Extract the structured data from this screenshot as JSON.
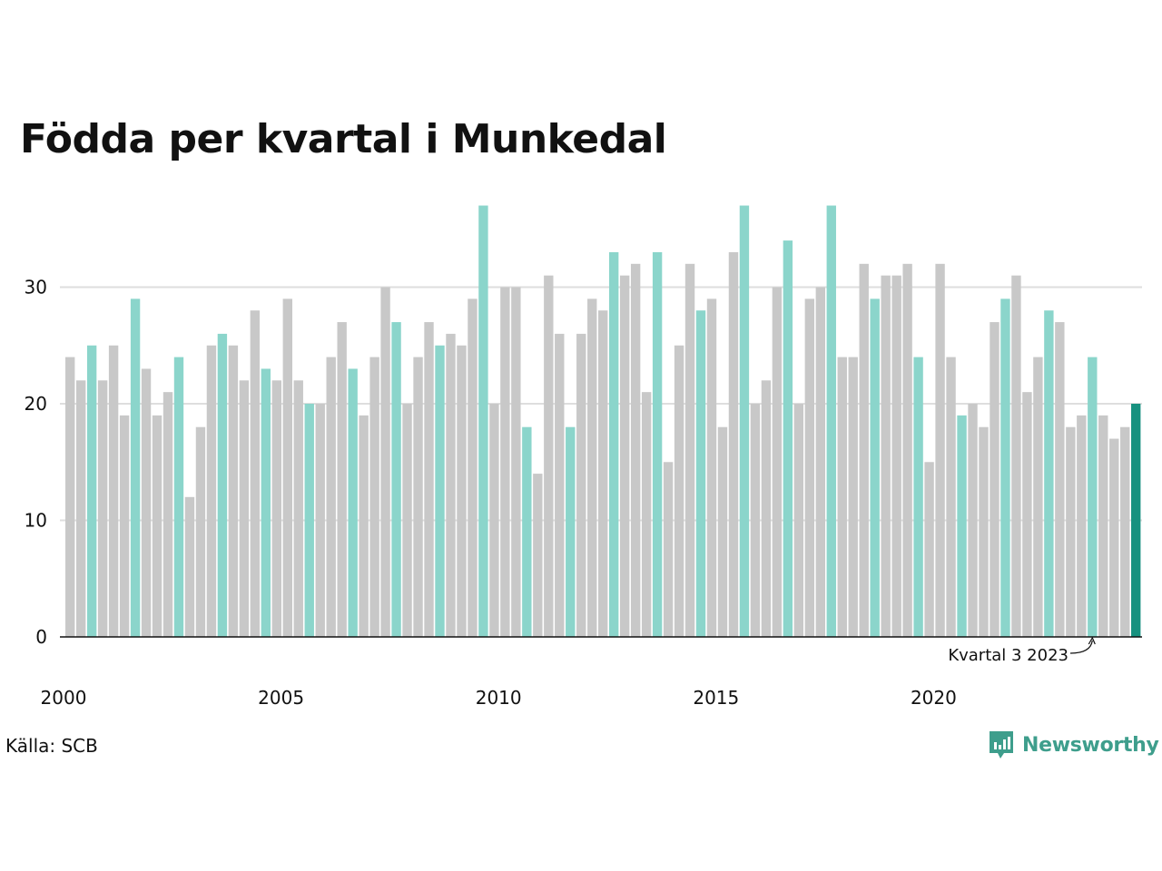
{
  "title": "Födda per kvartal i Munkedal",
  "source": "Källa: SCB",
  "brand": "Newsworthy",
  "colors": {
    "default_bar": "#c8c8c8",
    "highlight_bar": "#8bd5cb",
    "latest_bar": "#17917f",
    "grid": "#dedede",
    "axis": "#111111",
    "brand": "#3e9e8c"
  },
  "chart_data": {
    "type": "bar",
    "title": "Födda per kvartal i Munkedal",
    "xlabel": "",
    "ylabel": "",
    "ylim": [
      0,
      37
    ],
    "y_ticks": [
      0,
      10,
      20,
      30
    ],
    "x_tick_labels": [
      "2000",
      "2005",
      "2010",
      "2015",
      "2020"
    ],
    "grid": true,
    "highlight_rule": "third quarter of each year highlighted",
    "annotation": {
      "label": "Kvartal 3 2023",
      "target_index": 94
    },
    "values": [
      24,
      22,
      25,
      22,
      25,
      19,
      29,
      23,
      19,
      21,
      24,
      12,
      18,
      25,
      26,
      25,
      22,
      28,
      23,
      22,
      29,
      22,
      20,
      20,
      24,
      27,
      23,
      19,
      24,
      30,
      27,
      20,
      24,
      27,
      25,
      26,
      25,
      29,
      37,
      20,
      30,
      30,
      18,
      14,
      31,
      26,
      18,
      26,
      29,
      28,
      33,
      31,
      32,
      21,
      33,
      15,
      25,
      32,
      28,
      29,
      18,
      33,
      37,
      20,
      22,
      30,
      34,
      20,
      29,
      30,
      37,
      24,
      24,
      32,
      29,
      31,
      31,
      32,
      24,
      15,
      32,
      24,
      19,
      20,
      18,
      27,
      29,
      31,
      21,
      24,
      28,
      27,
      18,
      19,
      24,
      19,
      17,
      18,
      20
    ]
  }
}
